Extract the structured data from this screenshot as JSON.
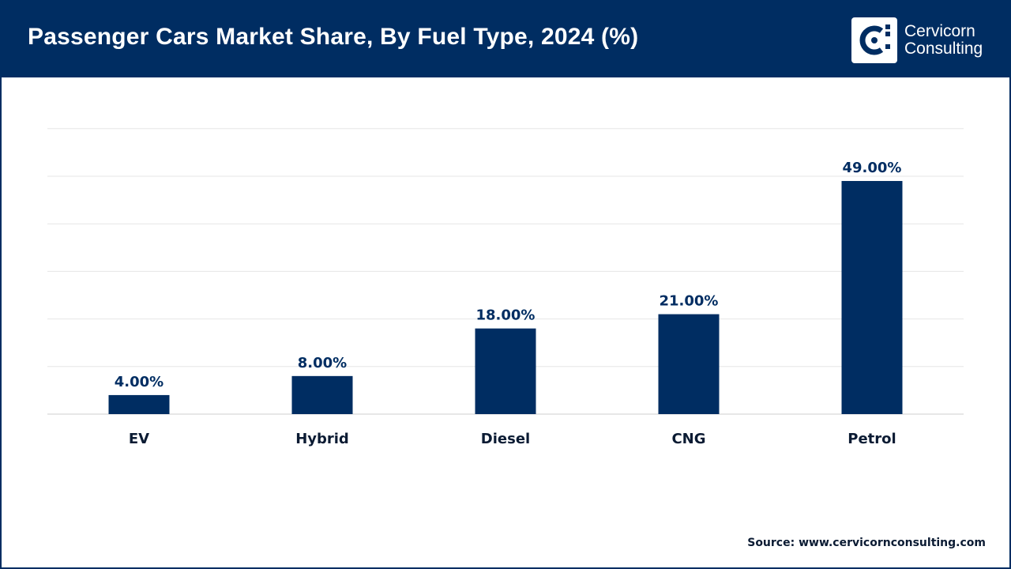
{
  "header": {
    "title": "Passenger Cars Market Share, By Fuel Type, 2024 (%)",
    "logo": {
      "line1": "Cervicorn",
      "line2": "Consulting",
      "icon": "cervicorn-logo-icon"
    }
  },
  "colors": {
    "brand": "#002d62",
    "bar": "#002d62",
    "grid": "#e6e6e6",
    "text": "#0b1b33"
  },
  "chart_data": {
    "type": "bar",
    "title": "Passenger Cars Market Share, By Fuel Type, 2024 (%)",
    "categories": [
      "EV",
      "Hybrid",
      "Diesel",
      "CNG",
      "Petrol"
    ],
    "values": [
      4.0,
      8.0,
      18.0,
      21.0,
      49.0
    ],
    "labels": [
      "4.00%",
      "8.00%",
      "18.00%",
      "21.00%",
      "49.00%"
    ],
    "xlabel": "",
    "ylabel": "",
    "ylim": [
      0,
      60
    ],
    "grid": true
  },
  "footer": {
    "source": "Source: www.cervicornconsulting.com"
  }
}
